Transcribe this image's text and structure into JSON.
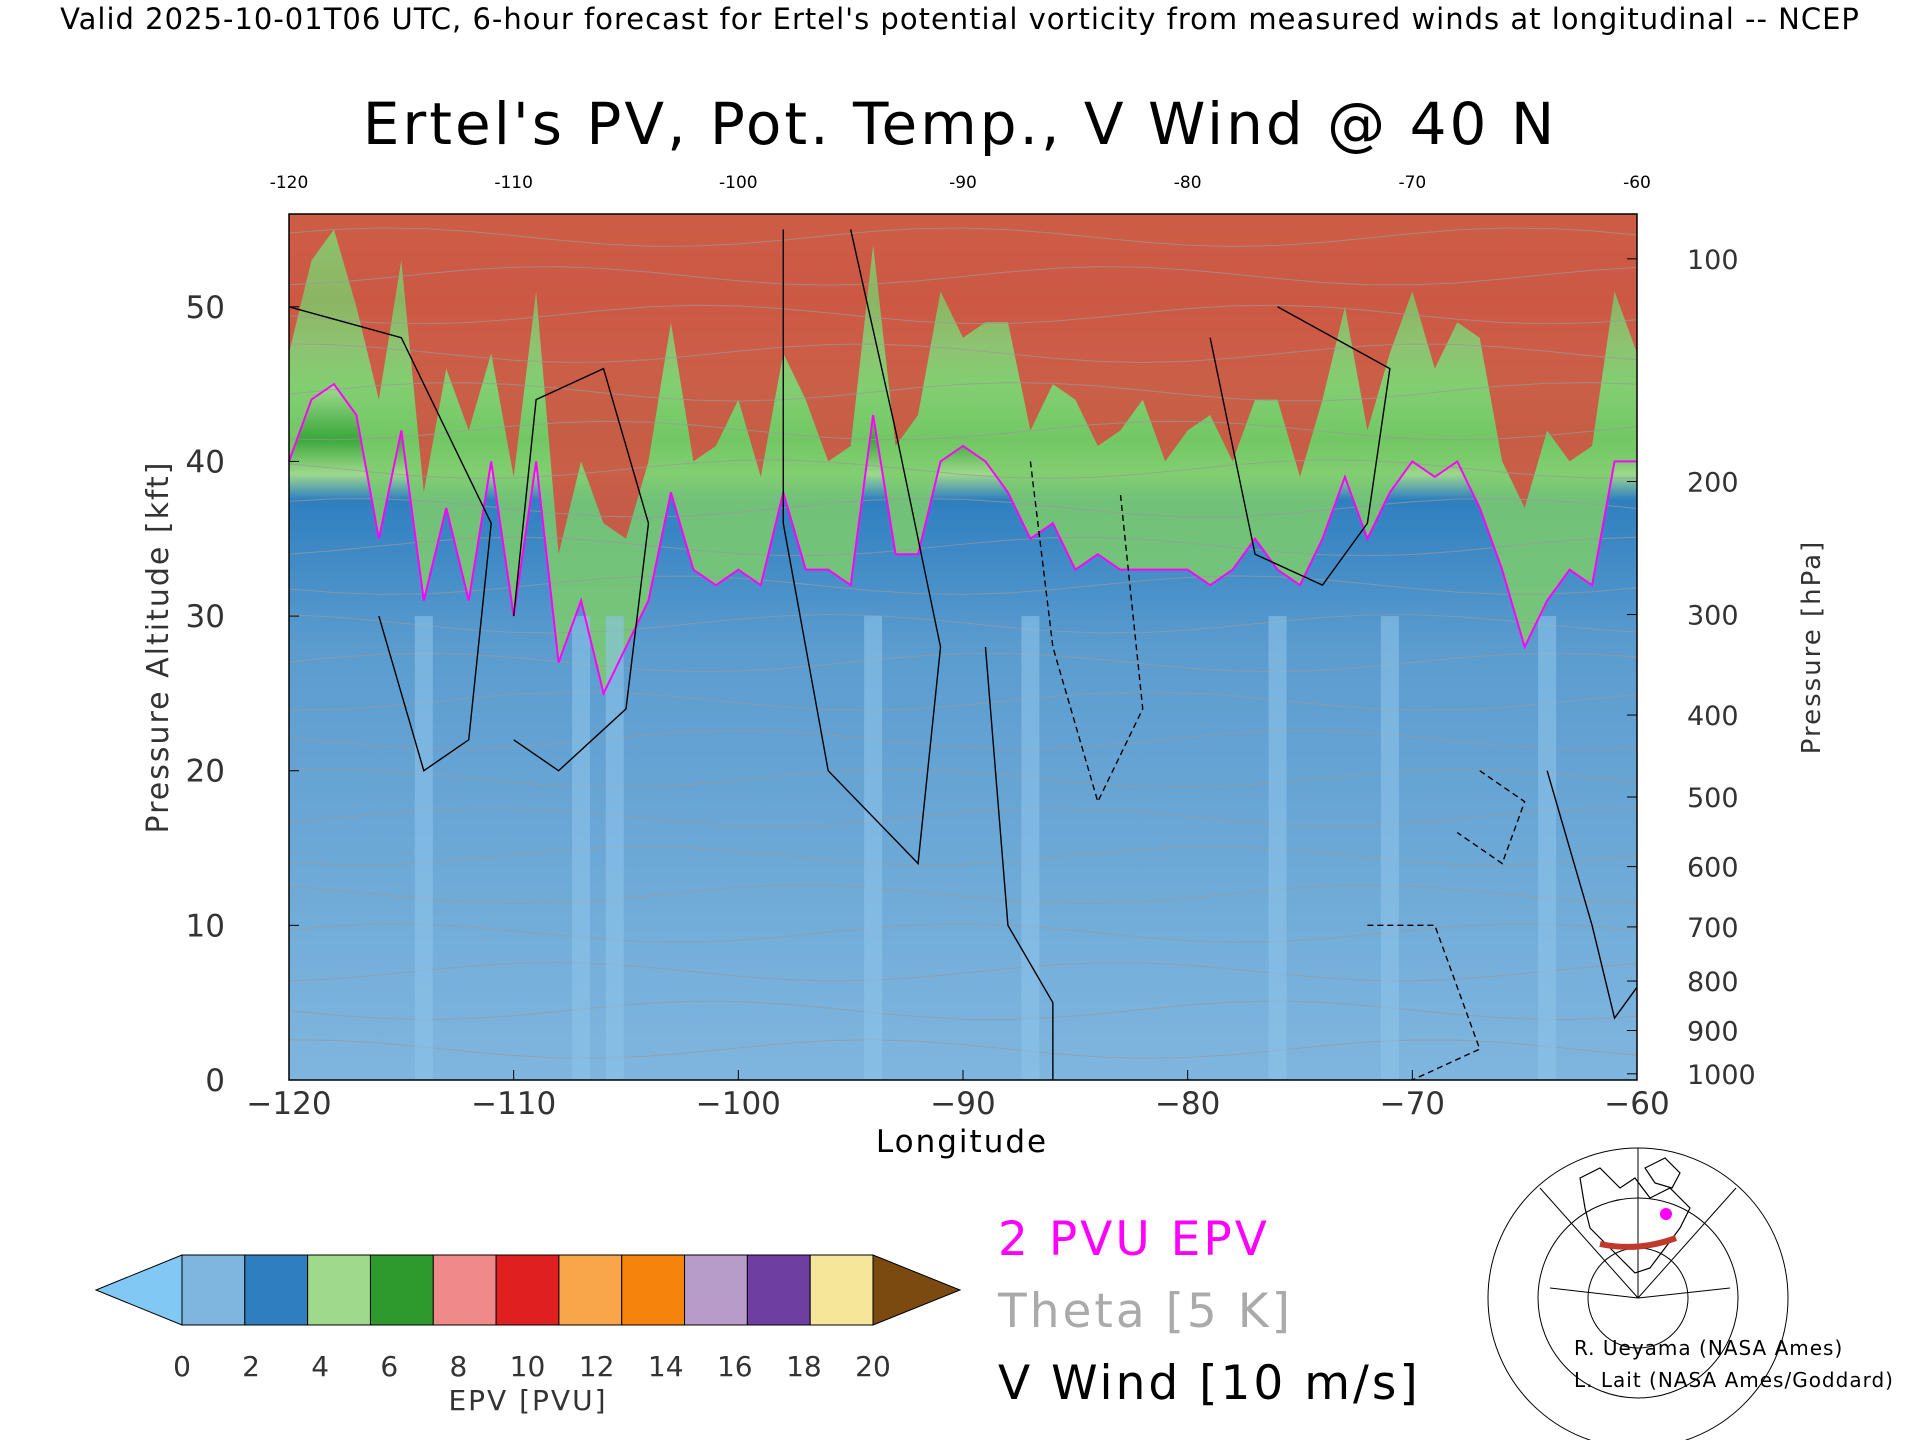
{
  "header": "Valid 2025-10-01T06 UTC, 6-hour forecast for Ertel's potential vorticity from measured winds at longitudinal -- NCEP",
  "title": "Ertel's PV, Pot. Temp., V Wind @ 40 N",
  "axes": {
    "x_label": "Longitude",
    "y_left_label": "Pressure Altitude [kft]",
    "y_right_label": "Pressure [hPa]",
    "x_ticks": [
      "-120",
      "-110",
      "-100",
      "-90",
      "-80",
      "-70",
      "-60"
    ],
    "x_top_ticks": [
      "-120",
      "-110",
      "-100",
      "-90",
      "-80",
      "-70",
      "-60"
    ],
    "y_left_ticks": [
      "0",
      "10",
      "20",
      "30",
      "40",
      "50"
    ],
    "y_right_ticks": [
      "100",
      "200",
      "300",
      "400",
      "500",
      "600",
      "700",
      "800",
      "900",
      "1000"
    ]
  },
  "colorbar": {
    "label": "EPV [PVU]",
    "ticks": [
      "0",
      "2",
      "4",
      "6",
      "8",
      "10",
      "12",
      "14",
      "16",
      "18",
      "20"
    ]
  },
  "legend": {
    "epv_2pvu": "2 PVU EPV",
    "theta": "Theta [5 K]",
    "vwind": "V Wind [10 m/s]",
    "epv_color": "#ff00ff",
    "theta_color": "#aaaaaa",
    "vwind_color": "#000000"
  },
  "credits": {
    "line1": "R. Ueyama (NASA Ames)",
    "line2": "L. Lait (NASA Ames/Goddard)"
  },
  "chart_data": {
    "type": "heatmap",
    "title": "Ertel's PV, Pot. Temp., V Wind @ 40 N",
    "xlabel": "Longitude",
    "ylabel": "Pressure Altitude [kft]",
    "y2label": "Pressure [hPa]",
    "xlim": [
      -120,
      -60
    ],
    "ylim": [
      0,
      56
    ],
    "x_ticks": [
      -120,
      -110,
      -100,
      -90,
      -80,
      -70,
      -60
    ],
    "y_ticks": [
      0,
      10,
      20,
      30,
      40,
      50
    ],
    "pressure_ticks_hpa": [
      100,
      200,
      300,
      400,
      500,
      600,
      700,
      800,
      900,
      1000
    ],
    "pressure_ticks_kft": [
      53.1,
      38.7,
      30.1,
      23.6,
      18.3,
      13.8,
      9.9,
      6.4,
      3.2,
      0.4
    ],
    "colorbar": {
      "label": "EPV [PVU]",
      "bounds": [
        0,
        2,
        4,
        6,
        8,
        10,
        12,
        14,
        16,
        18,
        20
      ],
      "colors": [
        "#7fb6df",
        "#2f7fc0",
        "#9fd98c",
        "#2e9a2e",
        "#f08a8a",
        "#e02020",
        "#f9a64a",
        "#f5830c",
        "#b79bc9",
        "#6e3ea0",
        "#f5e69a"
      ],
      "under_color": "#82c8f5",
      "over_color": "#7a4a10"
    },
    "series": [
      {
        "name": "2 PVU EPV",
        "color": "#ff00ff",
        "x": [
          -120,
          -119,
          -118,
          -117,
          -116,
          -115,
          -114,
          -113,
          -112,
          -111,
          -110,
          -109,
          -108,
          -107,
          -106,
          -105,
          -104,
          -103,
          -102,
          -101,
          -100,
          -99,
          -98,
          -97,
          -96,
          -95,
          -94,
          -93,
          -92,
          -91,
          -90,
          -89,
          -88,
          -87,
          -86,
          -85,
          -84,
          -83,
          -82,
          -81,
          -80,
          -79,
          -78,
          -77,
          -76,
          -75,
          -74,
          -73,
          -72,
          -71,
          -70,
          -69,
          -68,
          -67,
          -66,
          -65,
          -64,
          -63,
          -62,
          -61,
          -60
        ],
        "y": [
          40,
          44,
          45,
          43,
          35,
          42,
          31,
          37,
          31,
          40,
          30,
          40,
          27,
          31,
          25,
          28,
          31,
          38,
          33,
          32,
          33,
          32,
          38,
          33,
          33,
          32,
          43,
          34,
          34,
          40,
          41,
          40,
          38,
          35,
          36,
          33,
          34,
          33,
          33,
          33,
          33,
          32,
          33,
          35,
          33,
          32,
          35,
          39,
          35,
          38,
          40,
          39,
          40,
          37,
          33,
          28,
          31,
          33,
          32,
          40,
          40
        ]
      }
    ],
    "vwind_contours_ms": [
      -10,
      0,
      10
    ]
  }
}
